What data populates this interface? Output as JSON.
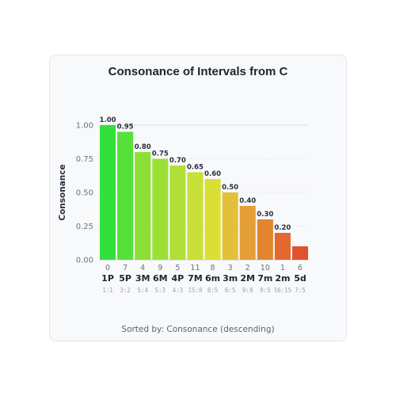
{
  "title": "Consonance of Intervals from C",
  "footer": "Sorted by: Consonance (descending)",
  "chart_data": {
    "type": "bar",
    "title": "Consonance of Intervals from C",
    "xlabel": "",
    "ylabel": "Consonance",
    "ylim": [
      0,
      1
    ],
    "yticks": [
      "0.00",
      "0.25",
      "0.50",
      "0.75",
      "1.00"
    ],
    "ytick_values": [
      0,
      0.25,
      0.5,
      0.75,
      1.0
    ],
    "grid": true,
    "categories": [
      "1P",
      "5P",
      "3M",
      "6M",
      "4P",
      "7M",
      "6m",
      "3m",
      "2M",
      "7m",
      "2m",
      "5d"
    ],
    "semitones": [
      "0",
      "7",
      "4",
      "9",
      "5",
      "11",
      "8",
      "3",
      "2",
      "10",
      "1",
      "6"
    ],
    "ratios": [
      "1:1",
      "3:2",
      "5:4",
      "5:3",
      "4:3",
      "15:8",
      "8:5",
      "6:5",
      "9:8",
      "9:5",
      "16:15",
      "7:5"
    ],
    "values": [
      1.0,
      0.95,
      0.8,
      0.75,
      0.7,
      0.65,
      0.6,
      0.5,
      0.4,
      0.3,
      0.2,
      0.1
    ],
    "value_labels": [
      "1.00",
      "0.95",
      "0.80",
      "0.75",
      "0.70",
      "0.65",
      "0.60",
      "0.50",
      "0.40",
      "0.30",
      "0.20",
      ""
    ],
    "colors": [
      "#33e03a",
      "#55e03a",
      "#8ddf38",
      "#9ce037",
      "#b0e037",
      "#c8e037",
      "#dadf36",
      "#e3c03a",
      "#e39f35",
      "#e3842f",
      "#e3682f",
      "#e1522c"
    ]
  }
}
